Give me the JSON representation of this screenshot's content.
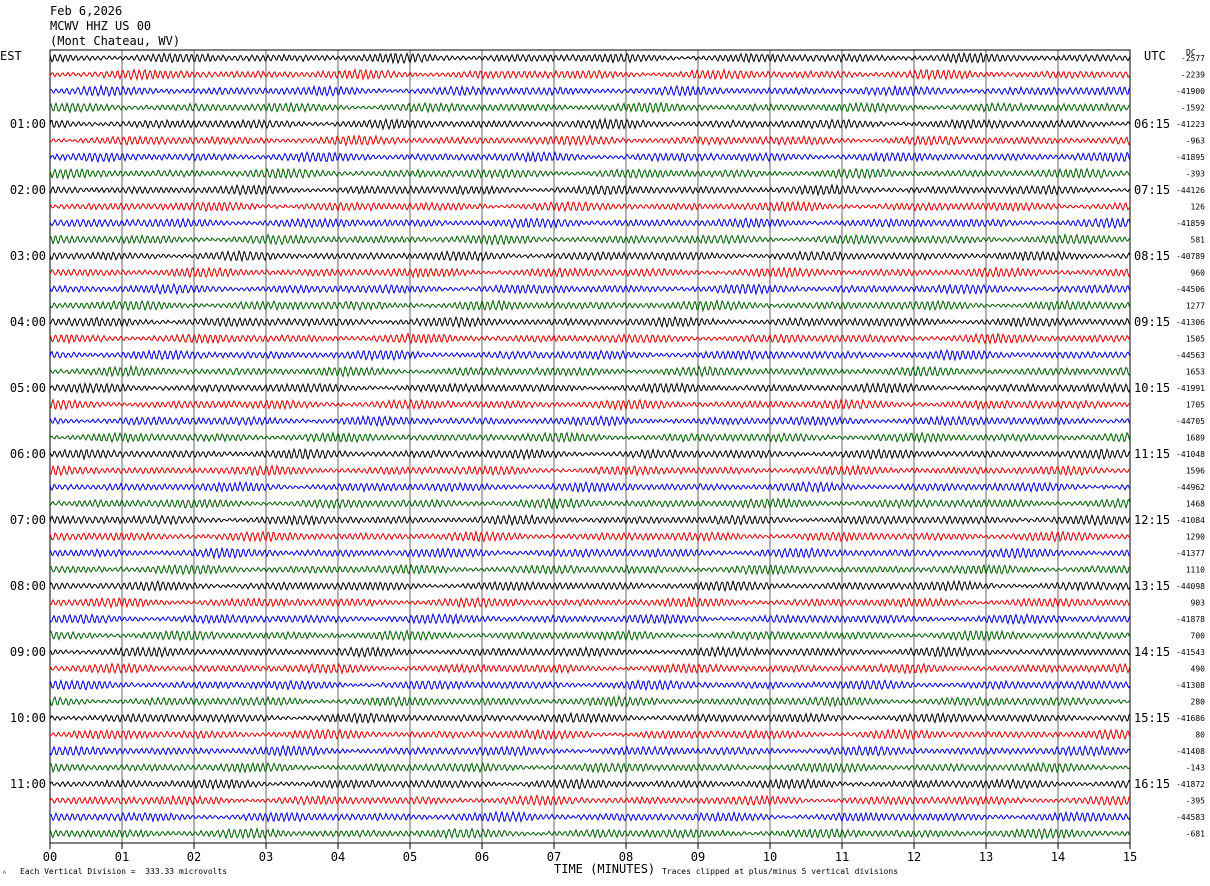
{
  "header": {
    "date": "Feb 6,2026",
    "station": "MCWV HHZ US 00",
    "location": "(Mont Chateau, WV)"
  },
  "left_tz": "EST",
  "right_tz": "UTC",
  "dc_label": "DC",
  "footer": {
    "scale_note": "Each Vertical Division =  333.33 microvolts",
    "xaxis_title": "TIME (MINUTES)",
    "clip_note": "Traces clipped at plus/minus 5 vertical divisions"
  },
  "colors": {
    "cycle": [
      "#000000",
      "#e00000",
      "#0000e0",
      "#006000"
    ],
    "grid": "#000000"
  },
  "chart_data": {
    "type": "line",
    "title": "MCWV HHZ US 00",
    "xlabel": "TIME (MINUTES)",
    "x_ticks": [
      "00",
      "01",
      "02",
      "03",
      "04",
      "05",
      "06",
      "07",
      "08",
      "09",
      "10",
      "11",
      "12",
      "13",
      "14",
      "15"
    ],
    "xlim": [
      0,
      15
    ],
    "left_hour_labels": [
      "01:00",
      "02:00",
      "03:00",
      "04:00",
      "05:00",
      "06:00",
      "07:00",
      "08:00",
      "09:00",
      "10:00",
      "11:00"
    ],
    "right_hour_labels": [
      "06:15",
      "07:15",
      "08:15",
      "09:15",
      "10:15",
      "11:15",
      "12:15",
      "13:15",
      "14:15",
      "15:15",
      "16:15"
    ],
    "trace_count": 48,
    "dc_offsets": [
      "-2577",
      "-2239",
      "-41900",
      "-1592",
      "-41223",
      "-963",
      "-41895",
      "-393",
      "-44126",
      "126",
      "-41859",
      "581",
      "-40789",
      "960",
      "-44506",
      "1277",
      "-41306",
      "1505",
      "-44563",
      "1653",
      "-41991",
      "1705",
      "-44705",
      "1689",
      "-41048",
      "1596",
      "-44962",
      "1468",
      "-41084",
      "1290",
      "-41377",
      "1110",
      "-44098",
      "903",
      "-41878",
      "700",
      "-41543",
      "490",
      "-41308",
      "280",
      "-41686",
      "80",
      "-41408",
      "-143",
      "-41872",
      "-395",
      "-44583",
      "-681"
    ]
  }
}
